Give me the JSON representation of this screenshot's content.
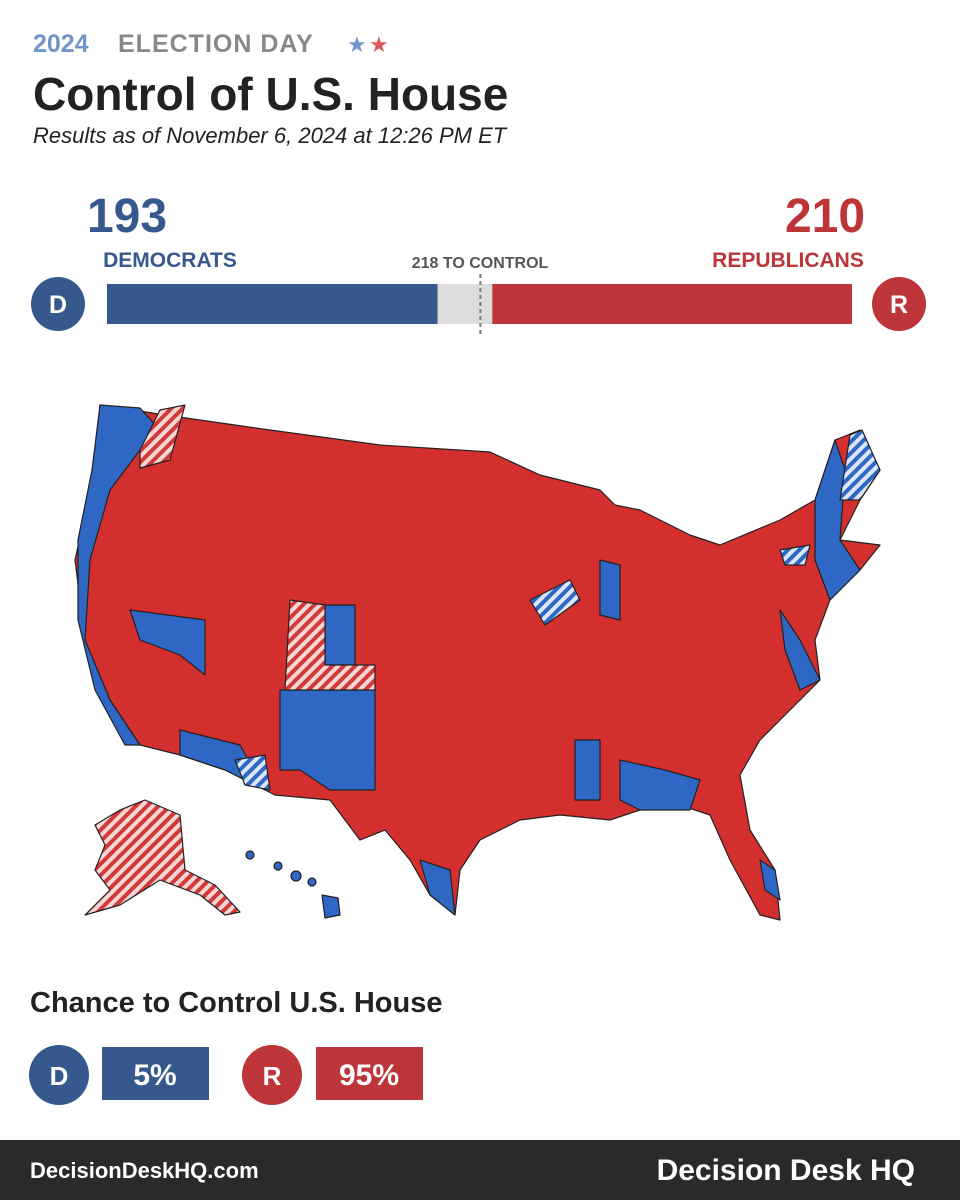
{
  "header": {
    "year": "2024",
    "label": "ELECTION DAY",
    "title": "Control of U.S. House",
    "subtitle": "Results as of November 6, 2024 at 12:26 PM ET"
  },
  "seats": {
    "dem": {
      "count": 193,
      "label": "DEMOCRATS",
      "badge": "D",
      "color": "#36598d"
    },
    "rep": {
      "count": 210,
      "label": "REPUBLICANS",
      "badge": "R",
      "color": "#bd3538"
    },
    "control": {
      "value": 218,
      "label": "218 TO CONTROL"
    }
  },
  "chance": {
    "title": "Chance to Control U.S. House",
    "dem": {
      "badge": "D",
      "text": "5%"
    },
    "rep": {
      "badge": "R",
      "text": "95%"
    }
  },
  "footer": {
    "url": "DecisionDeskHQ.com",
    "brand": "Decision Desk HQ"
  }
}
